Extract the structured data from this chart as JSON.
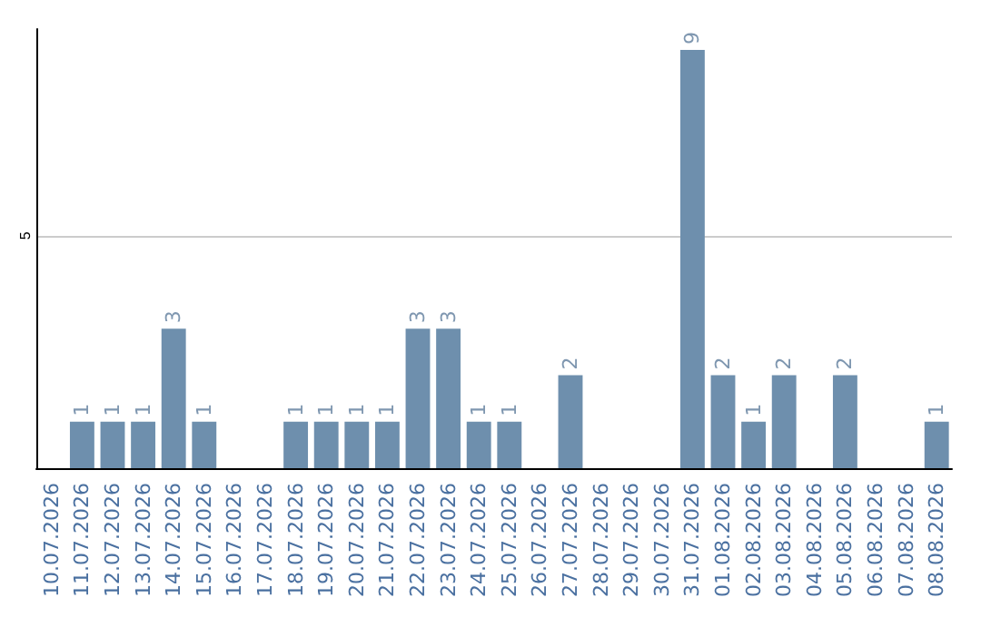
{
  "chart_data": {
    "type": "bar",
    "categories": [
      "10.07.2026",
      "11.07.2026",
      "12.07.2026",
      "13.07.2026",
      "14.07.2026",
      "15.07.2026",
      "16.07.2026",
      "17.07.2026",
      "18.07.2026",
      "19.07.2026",
      "20.07.2026",
      "21.07.2026",
      "22.07.2026",
      "23.07.2026",
      "24.07.2026",
      "25.07.2026",
      "26.07.2026",
      "27.07.2026",
      "28.07.2026",
      "29.07.2026",
      "30.07.2026",
      "31.07.2026",
      "01.08.2026",
      "02.08.2026",
      "03.08.2026",
      "04.08.2026",
      "05.08.2026",
      "06.08.2026",
      "07.08.2026",
      "08.08.2026"
    ],
    "values": [
      0,
      1,
      1,
      1,
      3,
      1,
      0,
      0,
      1,
      1,
      1,
      1,
      3,
      3,
      1,
      1,
      0,
      2,
      0,
      0,
      0,
      9,
      2,
      1,
      2,
      0,
      2,
      0,
      0,
      1
    ],
    "value_labels": [
      null,
      "1",
      "1",
      "1",
      "3",
      "1",
      null,
      null,
      "1",
      "1",
      "1",
      "1",
      "3",
      "3",
      "1",
      "1",
      null,
      "2",
      null,
      null,
      null,
      "9",
      "2",
      "1",
      "2",
      null,
      "2",
      null,
      null,
      "1"
    ],
    "color": "#6e8fad",
    "ylim": [
      0,
      9.45
    ],
    "yticks": [
      5
    ],
    "grid": "y"
  }
}
